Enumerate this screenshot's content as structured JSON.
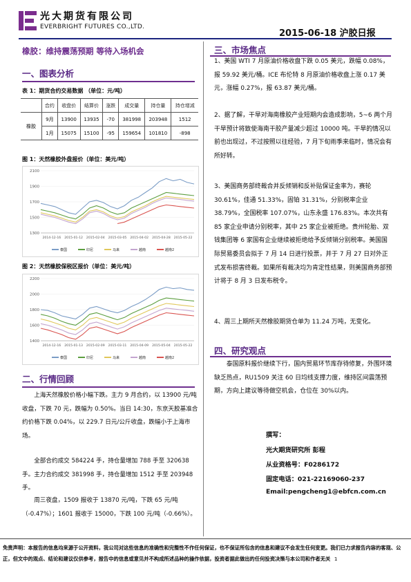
{
  "header": {
    "company_cn": "光大期货有限公司",
    "company_en": "EVERBRIGHT FUTURES CO.,LTD.",
    "date_title": "2015-06-18    沪胶日报",
    "logo_color": "#7b2d8e"
  },
  "report_title": "橡胶：维持震荡预期  等待入场机会",
  "section1": {
    "title": "一、图表分析",
    "table_caption": "表 1：期货合约交易数据  （单位：元/吨）",
    "table": {
      "headers": [
        "合约",
        "收盘价",
        "结算价",
        "涨跌",
        "成交量",
        "持仓量",
        "持仓增减"
      ],
      "row_label": "橡胶",
      "rows": [
        [
          "9月",
          "13900",
          "13935",
          "-70",
          "381998",
          "203948",
          "1512"
        ],
        [
          "1月",
          "15075",
          "15100",
          "-95",
          "159654",
          "101810",
          "-898"
        ]
      ]
    },
    "fig1_caption": "图 1：天然橡胶外盘报价（单位：美元/吨）",
    "fig2_caption": "图 2：天然橡胶保税区报价（单位：美元/吨）"
  },
  "chart_data": [
    {
      "type": "line",
      "y_ticks": [
        "2100",
        "1900",
        "1700",
        "1500",
        "1300"
      ],
      "ylim": [
        1300,
        2100
      ],
      "x_ticks": [
        "2014-12-16",
        "2015-01-12",
        "2015-02-04",
        "2015-03-05",
        "2015-04-02",
        "2015-04-28",
        "2015-05-22"
      ],
      "series": [
        {
          "name": "泰国",
          "color": "#7a9cc6",
          "values": [
            1680,
            1660,
            1640,
            1600,
            1560,
            1540,
            1620,
            1700,
            1720,
            1690,
            1640,
            1610,
            1650,
            1720,
            1760,
            1820,
            1880,
            1960,
            2000,
            1970,
            1990,
            1950,
            1930
          ]
        },
        {
          "name": "印尼",
          "color": "#5c9e3f",
          "values": [
            1600,
            1580,
            1560,
            1530,
            1500,
            1480,
            1540,
            1620,
            1650,
            1620,
            1570,
            1540,
            1560,
            1620,
            1660,
            1700,
            1740,
            1780,
            1820,
            1810,
            1800,
            1790,
            1780
          ]
        },
        {
          "name": "马来",
          "color": "#e0c75a",
          "values": [
            1560,
            1540,
            1520,
            1490,
            1460,
            1440,
            1500,
            1580,
            1600,
            1570,
            1520,
            1490,
            1510,
            1570,
            1610,
            1650,
            1700,
            1740,
            1770,
            1760,
            1750,
            1740,
            1730
          ]
        },
        {
          "name": "越南",
          "color": "#c3a4cf",
          "values": [
            1540,
            1520,
            1500,
            1470,
            1440,
            1420,
            1480,
            1560,
            1580,
            1550,
            1500,
            1470,
            1490,
            1550,
            1590,
            1630,
            1680,
            1720,
            1750,
            1740,
            1730,
            1720,
            1710
          ]
        },
        {
          "name": "越南2",
          "color": "#d9534f",
          "values": [
            null,
            null,
            null,
            null,
            null,
            null,
            null,
            null,
            null,
            null,
            null,
            1420,
            1440,
            1480,
            1520,
            1560,
            1600,
            1640,
            1660,
            1650,
            1640,
            1630,
            1620
          ]
        }
      ]
    },
    {
      "type": "line",
      "y_ticks": [
        "2200",
        "2000",
        "1800",
        "1600",
        "1400"
      ],
      "ylim": [
        1400,
        2200
      ],
      "x_ticks": [
        "2014-12-16",
        "2015-01-13",
        "2015-02-09",
        "2015-03-11",
        "2015-04-09",
        "2015-05-04",
        "2015-05-22"
      ],
      "series": [
        {
          "name": "泰国",
          "color": "#7a9cc6",
          "values": [
            1800,
            1790,
            1760,
            1720,
            1700,
            1680,
            1740,
            1820,
            1840,
            1810,
            1780,
            1760,
            1790,
            1840,
            1880,
            1930,
            1990,
            2060,
            2090,
            2070,
            2080,
            2060,
            2050
          ]
        },
        {
          "name": "印尼",
          "color": "#5c9e3f",
          "values": [
            1740,
            1720,
            1690,
            1650,
            1620,
            1600,
            1660,
            1740,
            1760,
            1730,
            1700,
            1670,
            1700,
            1750,
            1790,
            1830,
            1870,
            1920,
            1950,
            1940,
            1930,
            1920,
            1910
          ]
        },
        {
          "name": "马来",
          "color": "#e0c75a",
          "values": [
            1680,
            1660,
            1630,
            1600,
            1560,
            1540,
            1600,
            1680,
            1700,
            1670,
            1640,
            1610,
            1640,
            1690,
            1730,
            1770,
            1810,
            1850,
            1880,
            1870,
            1860,
            1850,
            1840
          ]
        },
        {
          "name": "越南",
          "color": "#c3a4cf",
          "values": [
            1620,
            1600,
            1570,
            1540,
            1500,
            1480,
            1540,
            1620,
            1640,
            1610,
            1580,
            1550,
            1580,
            1630,
            1670,
            1710,
            1750,
            1790,
            1820,
            1810,
            1800,
            1790,
            1780
          ]
        },
        {
          "name": "越南2",
          "color": "#d9534f",
          "values": [
            1560,
            1540,
            1510,
            1480,
            1440,
            1420,
            1480,
            1560,
            1580,
            1550,
            1520,
            1490,
            1520,
            1570,
            1610,
            1650,
            1690,
            1730,
            1760,
            1750,
            1740,
            1730,
            1720
          ]
        }
      ]
    }
  ],
  "section2": {
    "title": "二、行情回顾",
    "paragraphs": [
      "上海天然橡胶价格小幅下跌。主力 9 月合约，以 13900 元/吨收盘，下跌 70 元，跌幅为 0.50%。当日 14:30，东京天胶基准合约价格下跌 0.04%，以 229.7 日元/公斤收盘，跌幅小于上海市场。",
      "全部合约成交 584224 手，持仓量增加 788 手至 320638 手。主力合约成交 381998 手，持仓量增加 1512 手至 203948 手。",
      "周三夜盘，1509 报收于 13870 元/吨，下跌 65 元/吨（-0.47%）；1601 报收于 15000，下跌 100 元/吨（-0.66%）。"
    ]
  },
  "section3": {
    "title": "三、市场焦点",
    "paragraphs": [
      "1、美国 WTI 7 月原油价格收盘下跌 0.05 美元，跌幅 0.08%，报 59.92 美元/桶。ICE 布伦特 8 月原油价格收盘上涨 0.17 美元，涨幅 0.27%，报 63.87 美元/桶。",
      "2、据了解，干旱对海南橡胶产业短期内会造成影响，5~6 两个月干旱预计将致使海南干胶产量减少超过 10000 吨。干旱的情况以前也出现过，不过按照以往经验，7 月下旬雨季来临时，情况会有所好转。",
      "3、美国商务部终裁合并反倾销和反补贴保证金率为，赛轮 30.61%，佳通 51.33%，固铂 31.31%，分别税率企业 38.79%，全国税率 107.07%，山东永盛 176.83%。本次共有 85 家企业申请分别税率，其中 25 家企业被拒绝。贵州轮胎、双钱集团等 6 家国有企业继续被拒绝给予反倾销分别税率。美国国际贸易委员会拟于 7 月 14 日进行投票，并于 7 月 27 日对外正式发布损害终裁。如果所有裁决均为肯定性结果，则美国商务部预计将于 8 月 3 日发布税令。",
      "4、周三上期所天然橡胶期货仓单为 11.24 万吨，无变化。"
    ]
  },
  "section4": {
    "title": "四、研究观点",
    "paragraph": "泰国原料报价继续下行，国内贸易环节库存待修复，外围环境缺乏热点，RU1509 关注 60 日均线支撑力度，维持区间震荡预期，方向上建议等待做空机会，仓位在 30%以内。"
  },
  "author": {
    "label": "撰写：",
    "name": "光大期货研究所  彭程",
    "cert": "从业资格号：F0286172",
    "phone": "固定电话：021-22169060-237",
    "email": "Email:pengcheng1@ebfcn.com.cn"
  },
  "disclaimer": "免责声明：本报告的信息均来源于公开资料，我公司对这些信息的准确性和完整性不作任何保证，也不保证所包含的信息和建议不会发生任何变更。我们已力求报告内容的客观、公正，但文中的观点、结论和建议仅供参考，报告中的信息或意见并不构成所述品种的操作依据，投资者据此做出的任何投资决策与本公司和作者无关",
  "page_number": "1"
}
